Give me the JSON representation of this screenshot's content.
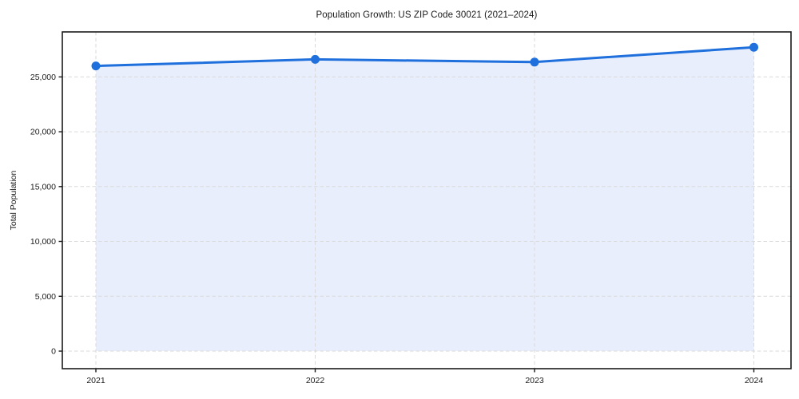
{
  "chart_data": {
    "type": "area",
    "title": "Population Growth: US ZIP Code 30021 (2021–2024)",
    "xlabel": "",
    "ylabel": "Total Population",
    "categories": [
      "2021",
      "2022",
      "2023",
      "2024"
    ],
    "values": [
      26000,
      26600,
      26350,
      27700
    ],
    "series": [
      {
        "name": "Total Population",
        "values": [
          26000,
          26600,
          26350,
          27700
        ]
      }
    ],
    "yticks": [
      0,
      5000,
      10000,
      15000,
      20000,
      25000
    ],
    "ytick_labels": [
      "0",
      "5,000",
      "10,000",
      "15,000",
      "20,000",
      "25,000"
    ],
    "ylim": [
      0,
      29000
    ],
    "grid": true,
    "grid_style": "dashed",
    "legend": "none",
    "line_color": "#1f70dd",
    "fill_color": "#e8eefb",
    "grid_color": "#dadada",
    "axis_color": "#1a1a1a",
    "marker": "circle"
  }
}
